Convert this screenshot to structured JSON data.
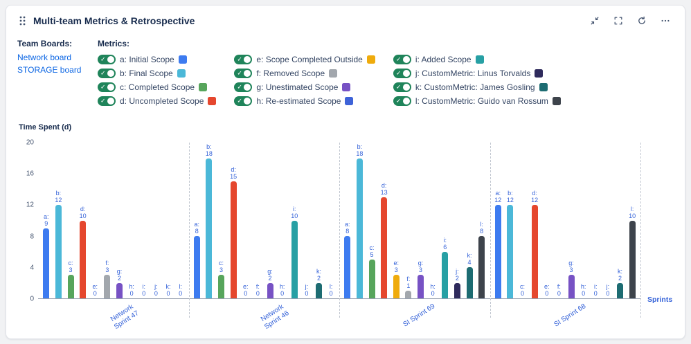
{
  "header": {
    "title": "Multi-team Metrics & Retrospective"
  },
  "team_boards": {
    "label": "Team Boards:",
    "boards": [
      "Network board",
      "STORAGE board"
    ]
  },
  "metrics_legend": {
    "label": "Metrics:",
    "toggle_color": "#1f845a",
    "items": [
      {
        "key": "a",
        "label": "a: Initial Scope",
        "color": "#3d7bf0",
        "enabled": true
      },
      {
        "key": "b",
        "label": "b: Final Scope",
        "color": "#4bb8d8",
        "enabled": true
      },
      {
        "key": "c",
        "label": "c: Completed Scope",
        "color": "#57a55c",
        "enabled": true
      },
      {
        "key": "d",
        "label": "d: Uncompleted Scope",
        "color": "#e5472e",
        "enabled": true
      },
      {
        "key": "e",
        "label": "e: Scope Completed Outside",
        "color": "#efab0c",
        "enabled": true
      },
      {
        "key": "f",
        "label": "f: Removed Scope",
        "color": "#a2a7ad",
        "enabled": true
      },
      {
        "key": "g",
        "label": "g: Unestimated Scope",
        "color": "#7752c4",
        "enabled": true
      },
      {
        "key": "h",
        "label": "h: Re-estimated Scope",
        "color": "#3e63d8",
        "enabled": true
      },
      {
        "key": "i",
        "label": "i: Added Scope",
        "color": "#27a0a4",
        "enabled": true
      },
      {
        "key": "j",
        "label": "j: CustomMetric: Linus Torvalds",
        "color": "#2e2a5c",
        "enabled": true
      },
      {
        "key": "k",
        "label": "k: CustomMetric: James Gosling",
        "color": "#1d6c72",
        "enabled": true
      },
      {
        "key": "l",
        "label": "l: CustomMetric: Guido van Rossum",
        "color": "#3d434b",
        "enabled": true
      }
    ]
  },
  "chart_data": {
    "type": "bar",
    "title": "",
    "ylabel": "Time Spent (d)",
    "xlabel": "Sprints",
    "ylim": [
      0,
      20
    ],
    "yticks": [
      0,
      4,
      8,
      12,
      16,
      20
    ],
    "grid": false,
    "legend_position": "top",
    "label_color": "#3361d8",
    "categories": [
      "Network\nSprint 47",
      "Network\nSprint 46",
      "SI Sprint 69",
      "SI Sprint 68"
    ],
    "series": [
      {
        "key": "a",
        "name": "Initial Scope",
        "values": [
          9,
          8,
          8,
          12
        ]
      },
      {
        "key": "b",
        "name": "Final Scope",
        "values": [
          12,
          18,
          18,
          12
        ]
      },
      {
        "key": "c",
        "name": "Completed Scope",
        "values": [
          3,
          3,
          5,
          0
        ]
      },
      {
        "key": "d",
        "name": "Uncompleted Scope",
        "values": [
          10,
          15,
          13,
          12
        ]
      },
      {
        "key": "e",
        "name": "Scope Completed Outside",
        "values": [
          0,
          0,
          3,
          0
        ]
      },
      {
        "key": "f",
        "name": "Removed Scope",
        "values": [
          3,
          0,
          1,
          0
        ]
      },
      {
        "key": "g",
        "name": "Unestimated Scope",
        "values": [
          2,
          2,
          3,
          3
        ]
      },
      {
        "key": "h",
        "name": "Re-estimated Scope",
        "values": [
          0,
          0,
          0,
          0
        ]
      },
      {
        "key": "i",
        "name": "Added Scope",
        "values": [
          0,
          10,
          6,
          0
        ]
      },
      {
        "key": "j",
        "name": "CustomMetric: Linus Torvalds",
        "values": [
          0,
          0,
          2,
          0
        ]
      },
      {
        "key": "k",
        "name": "CustomMetric: James Gosling",
        "values": [
          0,
          2,
          4,
          2
        ]
      },
      {
        "key": "l",
        "name": "CustomMetric: Guido van Rossum",
        "values": [
          0,
          0,
          8,
          10
        ]
      }
    ]
  }
}
